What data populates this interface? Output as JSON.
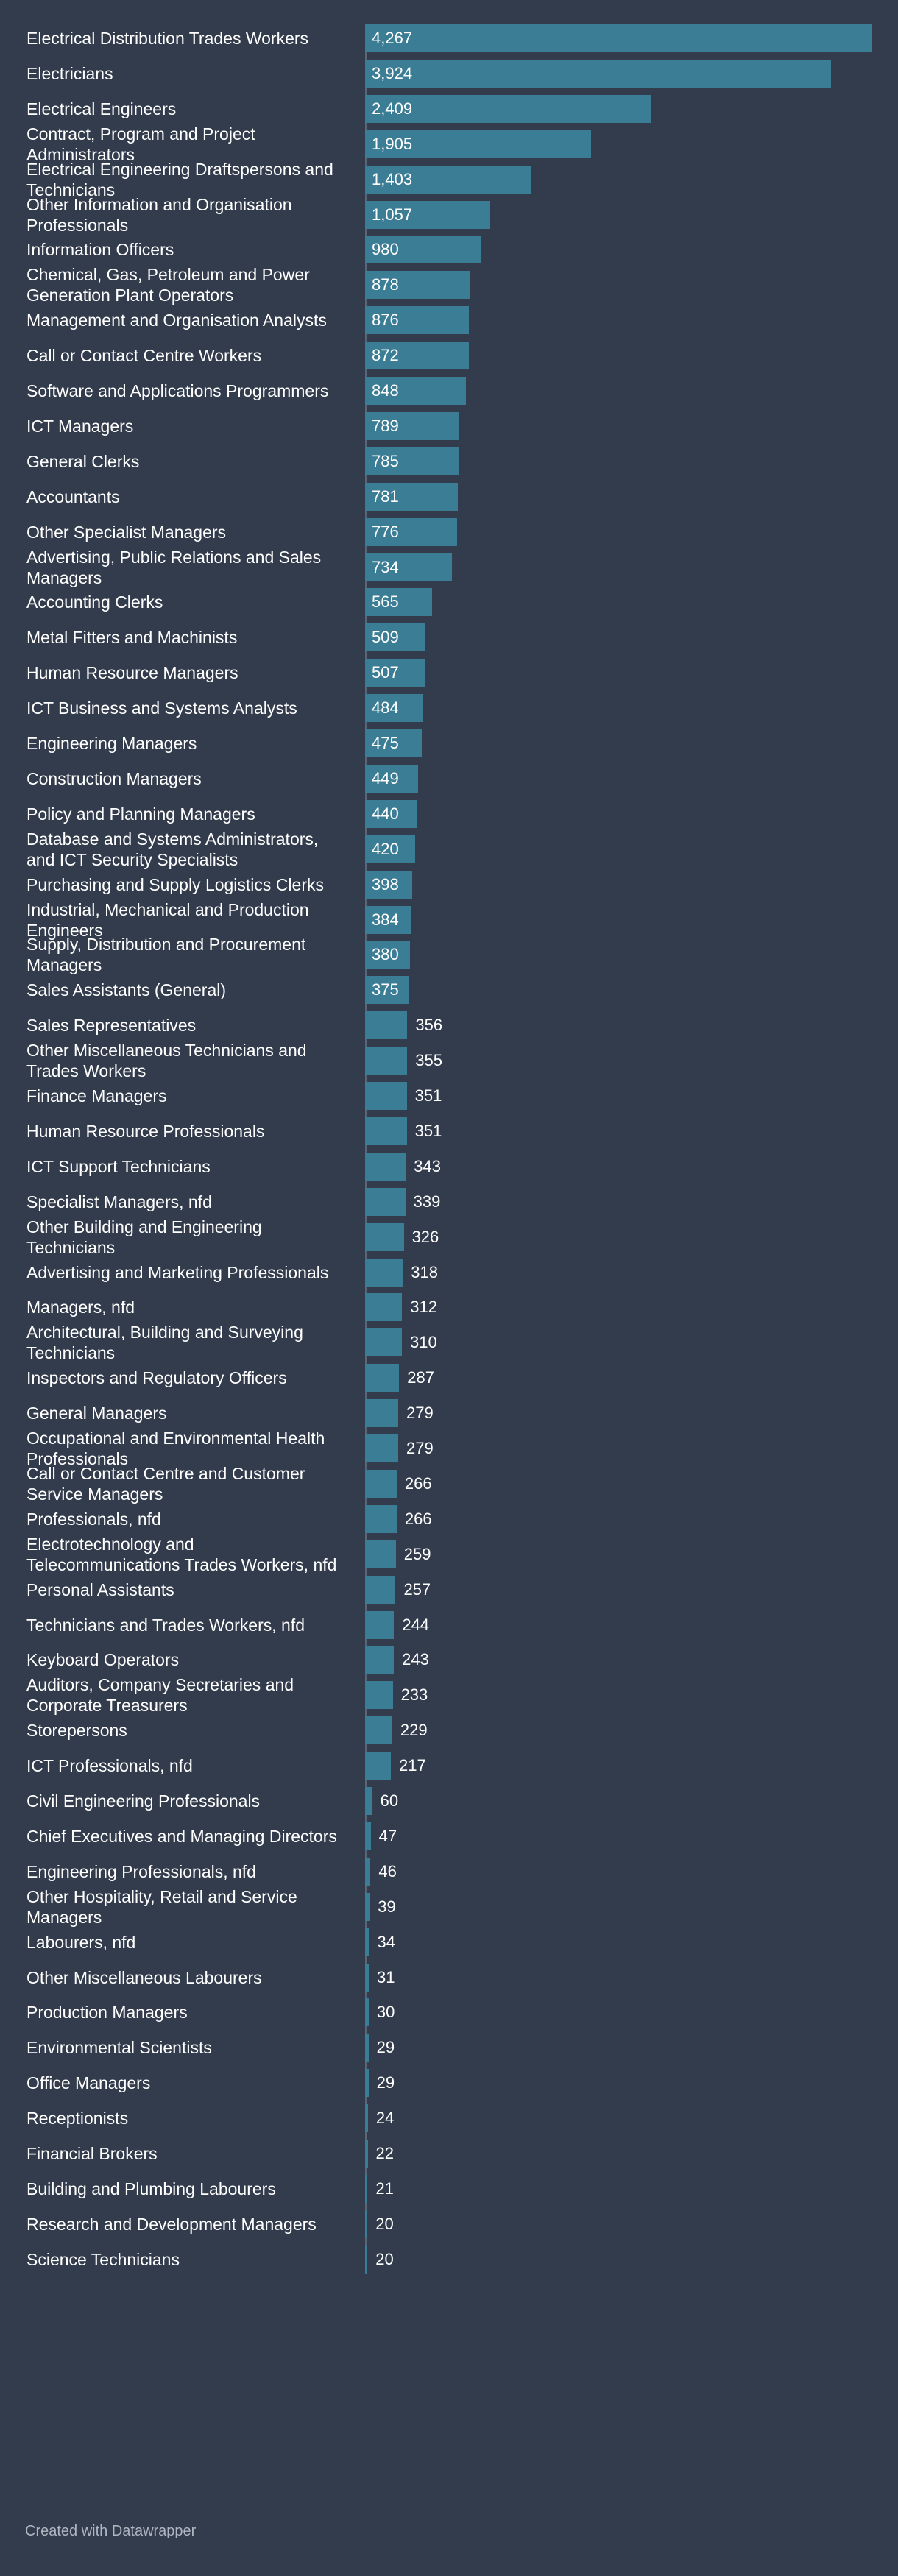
{
  "chart_data": {
    "type": "bar",
    "orientation": "horizontal",
    "xlim": [
      0,
      4267
    ],
    "bar_color": "#3c7d96",
    "background_color": "#333c4c",
    "categories": [
      "Electrical Distribution Trades Workers",
      "Electricians",
      "Electrical Engineers",
      "Contract, Program and Project Administrators",
      "Electrical Engineering Draftspersons and Technicians",
      "Other Information and Organisation Professionals",
      "Information Officers",
      "Chemical, Gas, Petroleum and Power Generation Plant Operators",
      "Management and Organisation Analysts",
      "Call or Contact Centre Workers",
      "Software and Applications Programmers",
      "ICT Managers",
      "General Clerks",
      "Accountants",
      "Other Specialist Managers",
      "Advertising, Public Relations and Sales Managers",
      "Accounting Clerks",
      "Metal Fitters and Machinists",
      "Human Resource Managers",
      "ICT Business and Systems Analysts",
      "Engineering Managers",
      "Construction Managers",
      "Policy and Planning Managers",
      "Database and Systems Administrators, and ICT Security Specialists",
      "Purchasing and Supply Logistics Clerks",
      "Industrial, Mechanical and Production Engineers",
      "Supply, Distribution and Procurement Managers",
      "Sales Assistants (General)",
      "Sales Representatives",
      "Other Miscellaneous Technicians and Trades Workers",
      "Finance Managers",
      "Human Resource Professionals",
      "ICT Support Technicians",
      "Specialist Managers, nfd",
      "Other Building and Engineering Technicians",
      "Advertising and Marketing Professionals",
      "Managers, nfd",
      "Architectural, Building and Surveying Technicians",
      "Inspectors and Regulatory Officers",
      "General Managers",
      "Occupational and Environmental Health Professionals",
      "Call or Contact Centre and Customer Service Managers",
      "Professionals, nfd",
      "Electrotechnology and Telecommunications Trades Workers, nfd",
      "Personal Assistants",
      "Technicians and Trades Workers, nfd",
      "Keyboard Operators",
      "Auditors, Company Secretaries and Corporate Treasurers",
      "Storepersons",
      "ICT Professionals, nfd",
      "Civil Engineering Professionals",
      "Chief Executives and Managing Directors",
      "Engineering Professionals, nfd",
      "Other Hospitality, Retail and Service Managers",
      "Labourers, nfd",
      "Other Miscellaneous Labourers",
      "Production Managers",
      "Environmental Scientists",
      "Office Managers",
      "Receptionists",
      "Financial Brokers",
      "Building and Plumbing Labourers",
      "Research and Development Managers",
      "Science Technicians"
    ],
    "values": [
      4267,
      3924,
      2409,
      1905,
      1403,
      1057,
      980,
      878,
      876,
      872,
      848,
      789,
      785,
      781,
      776,
      734,
      565,
      509,
      507,
      484,
      475,
      449,
      440,
      420,
      398,
      384,
      380,
      375,
      356,
      355,
      351,
      351,
      343,
      339,
      326,
      318,
      312,
      310,
      287,
      279,
      279,
      266,
      266,
      259,
      257,
      244,
      243,
      233,
      229,
      217,
      60,
      47,
      46,
      39,
      34,
      31,
      30,
      29,
      29,
      24,
      22,
      21,
      20,
      20
    ],
    "value_labels": [
      "4,267",
      "3,924",
      "2,409",
      "1,905",
      "1,403",
      "1,057",
      "980",
      "878",
      "876",
      "872",
      "848",
      "789",
      "785",
      "781",
      "776",
      "734",
      "565",
      "509",
      "507",
      "484",
      "475",
      "449",
      "440",
      "420",
      "398",
      "384",
      "380",
      "375",
      "356",
      "355",
      "351",
      "351",
      "343",
      "339",
      "326",
      "318",
      "312",
      "310",
      "287",
      "279",
      "279",
      "266",
      "266",
      "259",
      "257",
      "244",
      "243",
      "233",
      "229",
      "217",
      "60",
      "47",
      "46",
      "39",
      "34",
      "31",
      "30",
      "29",
      "29",
      "24",
      "22",
      "21",
      "20",
      "20"
    ],
    "label_lines": [
      [
        "Electrical Distribution Trades Workers"
      ],
      [
        "Electricians"
      ],
      [
        "Electrical Engineers"
      ],
      [
        "Contract, Program and Project",
        "Administrators"
      ],
      [
        "Electrical Engineering Draftspersons and",
        "Technicians"
      ],
      [
        "Other Information and Organisation",
        "Professionals"
      ],
      [
        "Information Officers"
      ],
      [
        "Chemical, Gas, Petroleum and Power",
        "Generation Plant Operators"
      ],
      [
        "Management and Organisation Analysts"
      ],
      [
        "Call or Contact Centre Workers"
      ],
      [
        "Software and Applications Programmers"
      ],
      [
        "ICT Managers"
      ],
      [
        "General Clerks"
      ],
      [
        "Accountants"
      ],
      [
        "Other Specialist Managers"
      ],
      [
        "Advertising, Public Relations and Sales",
        "Managers"
      ],
      [
        "Accounting Clerks"
      ],
      [
        "Metal Fitters and Machinists"
      ],
      [
        "Human Resource Managers"
      ],
      [
        "ICT Business and Systems Analysts"
      ],
      [
        "Engineering Managers"
      ],
      [
        "Construction Managers"
      ],
      [
        "Policy and Planning Managers"
      ],
      [
        "Database and Systems Administrators,",
        "and ICT Security Specialists"
      ],
      [
        "Purchasing and Supply Logistics Clerks"
      ],
      [
        "Industrial, Mechanical and Production",
        "Engineers"
      ],
      [
        "Supply, Distribution and Procurement",
        "Managers"
      ],
      [
        "Sales Assistants (General)"
      ],
      [
        "Sales Representatives"
      ],
      [
        "Other Miscellaneous Technicians and",
        "Trades Workers"
      ],
      [
        "Finance Managers"
      ],
      [
        "Human Resource Professionals"
      ],
      [
        "ICT Support Technicians"
      ],
      [
        "Specialist Managers, nfd"
      ],
      [
        "Other Building and Engineering",
        "Technicians"
      ],
      [
        "Advertising and Marketing Professionals"
      ],
      [
        "Managers, nfd"
      ],
      [
        "Architectural, Building and Surveying",
        "Technicians"
      ],
      [
        "Inspectors and Regulatory Officers"
      ],
      [
        "General Managers"
      ],
      [
        "Occupational and Environmental Health",
        "Professionals"
      ],
      [
        "Call or Contact Centre and Customer",
        "Service Managers"
      ],
      [
        "Professionals, nfd"
      ],
      [
        "Electrotechnology and",
        "Telecommunications Trades Workers, nfd"
      ],
      [
        "Personal Assistants"
      ],
      [
        "Technicians and Trades Workers, nfd"
      ],
      [
        "Keyboard Operators"
      ],
      [
        "Auditors, Company Secretaries and",
        "Corporate Treasurers"
      ],
      [
        "Storepersons"
      ],
      [
        "ICT Professionals, nfd"
      ],
      [
        "Civil Engineering Professionals"
      ],
      [
        "Chief Executives and Managing Directors"
      ],
      [
        "Engineering Professionals, nfd"
      ],
      [
        "Other Hospitality, Retail and Service",
        "Managers"
      ],
      [
        "Labourers, nfd"
      ],
      [
        "Other Miscellaneous Labourers"
      ],
      [
        "Production Managers"
      ],
      [
        "Environmental Scientists"
      ],
      [
        "Office Managers"
      ],
      [
        "Receptionists"
      ],
      [
        "Financial Brokers"
      ],
      [
        "Building and Plumbing Labourers"
      ],
      [
        "Research and Development Managers"
      ],
      [
        "Science Technicians"
      ]
    ]
  },
  "footer": {
    "credit": "Created with Datawrapper"
  }
}
